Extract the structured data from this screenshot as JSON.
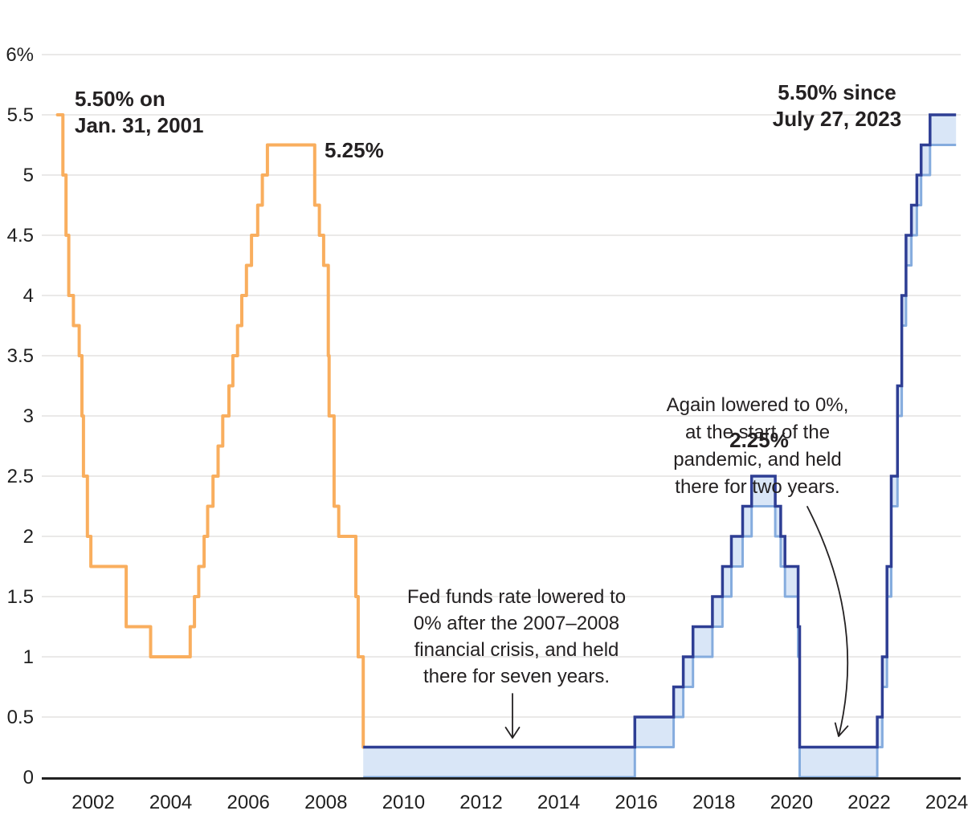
{
  "chart_data": {
    "type": "line",
    "subtype": "step",
    "unit": "%",
    "grid": true,
    "legend": false,
    "y_axis": {
      "range": [
        0,
        6
      ],
      "ticks": [
        {
          "v": 0,
          "label": "0"
        },
        {
          "v": 0.5,
          "label": "0.5"
        },
        {
          "v": 1,
          "label": "1"
        },
        {
          "v": 1.5,
          "label": "1.5"
        },
        {
          "v": 2,
          "label": "2"
        },
        {
          "v": 2.5,
          "label": "2.5"
        },
        {
          "v": 3,
          "label": "3"
        },
        {
          "v": 3.5,
          "label": "3.5"
        },
        {
          "v": 4,
          "label": "4"
        },
        {
          "v": 4.5,
          "label": "4.5"
        },
        {
          "v": 5,
          "label": "5"
        },
        {
          "v": 5.5,
          "label": "5.5"
        },
        {
          "v": 6,
          "label": "6%"
        }
      ]
    },
    "x_axis": {
      "range": [
        2000.7,
        2024.4
      ],
      "ticks": [
        2002,
        2004,
        2006,
        2008,
        2010,
        2012,
        2014,
        2016,
        2018,
        2020,
        2022,
        2024
      ]
    },
    "series": [
      {
        "name": "fed-funds-target-rate-2001-2008",
        "style": "step-line",
        "color": "#F9AE5E",
        "points": [
          [
            2001.08,
            5.5
          ],
          [
            2001.22,
            5.0
          ],
          [
            2001.3,
            4.5
          ],
          [
            2001.37,
            4.0
          ],
          [
            2001.49,
            3.75
          ],
          [
            2001.64,
            3.5
          ],
          [
            2001.71,
            3.0
          ],
          [
            2001.75,
            2.5
          ],
          [
            2001.85,
            2.0
          ],
          [
            2001.94,
            1.75
          ],
          [
            2002.85,
            1.25
          ],
          [
            2003.48,
            1.0
          ],
          [
            2004.5,
            1.25
          ],
          [
            2004.61,
            1.5
          ],
          [
            2004.72,
            1.75
          ],
          [
            2004.86,
            2.0
          ],
          [
            2004.95,
            2.25
          ],
          [
            2005.09,
            2.5
          ],
          [
            2005.22,
            2.75
          ],
          [
            2005.34,
            3.0
          ],
          [
            2005.5,
            3.25
          ],
          [
            2005.6,
            3.5
          ],
          [
            2005.72,
            3.75
          ],
          [
            2005.83,
            4.0
          ],
          [
            2005.95,
            4.25
          ],
          [
            2006.08,
            4.5
          ],
          [
            2006.24,
            4.75
          ],
          [
            2006.36,
            5.0
          ],
          [
            2006.49,
            5.25
          ],
          [
            2007.71,
            4.75
          ],
          [
            2007.83,
            4.5
          ],
          [
            2007.94,
            4.25
          ],
          [
            2008.06,
            3.5
          ],
          [
            2008.08,
            3.0
          ],
          [
            2008.21,
            2.25
          ],
          [
            2008.33,
            2.0
          ],
          [
            2008.77,
            1.5
          ],
          [
            2008.83,
            1.0
          ],
          [
            2008.96,
            0.25
          ]
        ]
      },
      {
        "name": "fed-funds-target-range-2008-2024",
        "style": "step-band",
        "band_width": 0.25,
        "color": "#2E3E94",
        "fill": "#D9E6F7",
        "lower_color": "#85ACDE",
        "points": [
          [
            2008.96,
            0.25
          ],
          [
            2015.96,
            0.5
          ],
          [
            2016.96,
            0.75
          ],
          [
            2017.21,
            1.0
          ],
          [
            2017.46,
            1.25
          ],
          [
            2017.96,
            1.5
          ],
          [
            2018.22,
            1.75
          ],
          [
            2018.45,
            2.0
          ],
          [
            2018.74,
            2.25
          ],
          [
            2018.97,
            2.5
          ],
          [
            2019.58,
            2.25
          ],
          [
            2019.72,
            2.0
          ],
          [
            2019.83,
            1.75
          ],
          [
            2020.17,
            1.25
          ],
          [
            2020.21,
            0.25
          ],
          [
            2022.21,
            0.5
          ],
          [
            2022.34,
            1.0
          ],
          [
            2022.46,
            1.75
          ],
          [
            2022.57,
            2.5
          ],
          [
            2022.73,
            3.25
          ],
          [
            2022.84,
            4.0
          ],
          [
            2022.95,
            4.5
          ],
          [
            2023.09,
            4.75
          ],
          [
            2023.23,
            5.0
          ],
          [
            2023.34,
            5.25
          ],
          [
            2023.57,
            5.5
          ],
          [
            2024.24,
            5.5
          ]
        ]
      }
    ],
    "annotations": {
      "start_label": {
        "lines": [
          "5.50% on",
          "Jan. 31, 2001"
        ]
      },
      "peak_2006_label": "5.25%",
      "current_label": {
        "lines": [
          "5.50% since",
          "July 27, 2023"
        ]
      },
      "peak_2019_label": "2.25%",
      "gfc_note": {
        "lines": [
          "Fed funds rate lowered to",
          "0% after the 2007–2008",
          "financial crisis, and held",
          "there for seven years."
        ]
      },
      "pandemic_note": {
        "lines": [
          "Again lowered to 0%,",
          "at the start of the",
          "pandemic, and held",
          "there for two years."
        ]
      }
    },
    "colors": {
      "gridline": "#E4E2E0",
      "axis": "#222222",
      "tick_text": "#1F1F1F",
      "annotation_text": "#242122",
      "arrow": "#242122"
    }
  }
}
